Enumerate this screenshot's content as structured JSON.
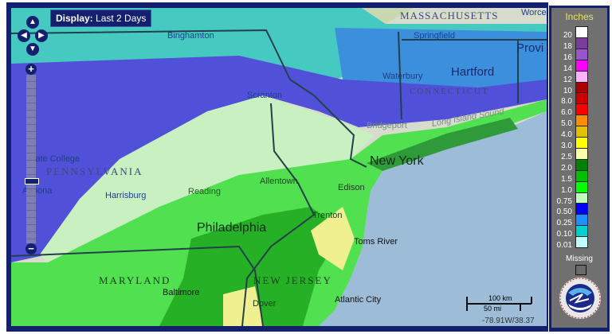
{
  "display": {
    "label": "Display:",
    "value": "Last 2 Days"
  },
  "controls": {
    "pan_up": "▲",
    "pan_down": "▼",
    "pan_left": "◀",
    "pan_right": "▶",
    "zoom_in": "+",
    "zoom_out": "−",
    "zoom_level_fraction": 0.65
  },
  "map_labels": {
    "massachusetts": "MASSACHUSETTS",
    "springfield": "Springfield",
    "providence": "Provi",
    "worcester": "Worcester",
    "binghamton": "Binghamton",
    "waterbury": "Waterbury",
    "hartford": "Hartford",
    "connecticut": "CONNECTICUT",
    "scranton": "Scranton",
    "bridgeport": "Bridgeport",
    "long_island_sound": "Long Island Sound",
    "state_college": "State College",
    "pennsylvania": "PENNSYLVANIA",
    "altoona": "Altoona",
    "harrisburg": "Harrisburg",
    "reading": "Reading",
    "allentown": "Allentown",
    "new_york": "New York",
    "edison": "Edison",
    "trenton": "Trenton",
    "philadelphia": "Philadelphia",
    "toms_river": "Toms River",
    "maryland": "MARYLAND",
    "baltimore": "Baltimore",
    "new_jersey": "NEW JERSEY",
    "dover": "Dover",
    "atlantic_city": "Atlantic City"
  },
  "scale": {
    "km": "100 km",
    "mi": "50 mi"
  },
  "coords": "-78.91W/38.37",
  "legend": {
    "title": "Inches",
    "items": [
      {
        "label": "20",
        "color": "#ffffff"
      },
      {
        "label": "18",
        "color": "#7a3d9a"
      },
      {
        "label": "16",
        "color": "#9955cc"
      },
      {
        "label": "14",
        "color": "#ff00ff"
      },
      {
        "label": "12",
        "color": "#ffb3ff"
      },
      {
        "label": "10",
        "color": "#aa0000"
      },
      {
        "label": "8.0",
        "color": "#cc0000"
      },
      {
        "label": "6.0",
        "color": "#ff0000"
      },
      {
        "label": "5.0",
        "color": "#ff8c00"
      },
      {
        "label": "4.0",
        "color": "#e0c000"
      },
      {
        "label": "3.0",
        "color": "#ffff00"
      },
      {
        "label": "2.5",
        "color": "#ffffaa"
      },
      {
        "label": "2.0",
        "color": "#008000"
      },
      {
        "label": "1.5",
        "color": "#00c000"
      },
      {
        "label": "1.0",
        "color": "#00ff00"
      },
      {
        "label": "0.75",
        "color": "#c0ffc0"
      },
      {
        "label": "0.50",
        "color": "#0000ff"
      },
      {
        "label": "0.25",
        "color": "#1e90ff"
      },
      {
        "label": "0.10",
        "color": "#00d0d0"
      },
      {
        "label": "0.01",
        "color": "#c0ffff"
      }
    ],
    "missing_label": "Missing",
    "logo_text": "NATIONAL WEATHER SERVICE U.S. DOC-NOAA"
  }
}
